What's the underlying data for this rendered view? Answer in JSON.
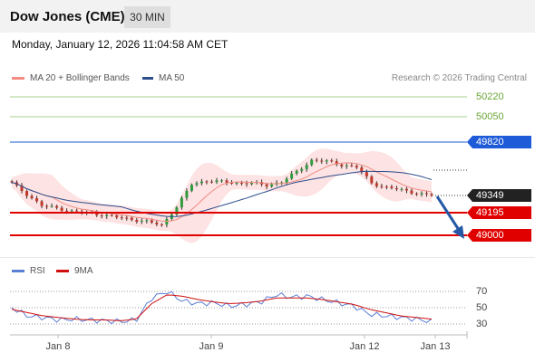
{
  "header": {
    "title": "Dow Jones (CME)",
    "timeframe": "30 MIN"
  },
  "datetime": "Monday, January 12, 2026 11:04:58 AM CET",
  "legend": {
    "ma20": {
      "label": "MA 20 + Bollinger Bands",
      "color": "#f28b82"
    },
    "ma50": {
      "label": "MA 50",
      "color": "#2c4e8c"
    }
  },
  "copyright": "Research © 2026 Trading Central",
  "levels": {
    "r3": "50220",
    "r2": "50050",
    "r1": "49820",
    "last": "49349",
    "s1": "49195",
    "s2": "49000"
  },
  "rsi_legend": {
    "rsi": {
      "label": "RSI",
      "color": "#5b7fd6"
    },
    "ma": {
      "label": "9MA",
      "color": "#d01010"
    }
  },
  "rsi_ticks": [
    "70",
    "50",
    "30"
  ],
  "x_labels": [
    "Jan 8",
    "Jan 9",
    "Jan 12",
    "Jan 13"
  ],
  "colors": {
    "up": "#2e9b3c",
    "down": "#c0392b",
    "resistance": "#a6d08a",
    "support": "#e00000",
    "pivot": "#1e5bd8",
    "forecast_arrow": "#2458a6"
  },
  "chart_data": {
    "type": "candlestick",
    "price_axis_labels": [
      "50220",
      "50050",
      "49820",
      "49349",
      "49195",
      "49000"
    ],
    "approx_close_path": [
      49460,
      49360,
      49260,
      49240,
      49210,
      49200,
      49180,
      49160,
      49140,
      49120,
      49090,
      49250,
      49450,
      49480,
      49470,
      49460,
      49460,
      49440,
      49470,
      49560,
      49660,
      49650,
      49620,
      49600,
      49460,
      49420,
      49400,
      49370,
      49349
    ],
    "rsi_approx": [
      50,
      40,
      38,
      35,
      36,
      35,
      34,
      33,
      35,
      62,
      70,
      58,
      55,
      56,
      52,
      54,
      57,
      66,
      63,
      64,
      60,
      56,
      52,
      42,
      40,
      38,
      36,
      33
    ],
    "rsi_ma_approx": [
      48,
      44,
      40,
      38,
      36,
      35,
      35,
      34,
      36,
      55,
      66,
      64,
      60,
      57,
      55,
      56,
      58,
      62,
      62,
      62,
      60,
      57,
      54,
      48,
      44,
      40,
      38,
      36
    ]
  }
}
